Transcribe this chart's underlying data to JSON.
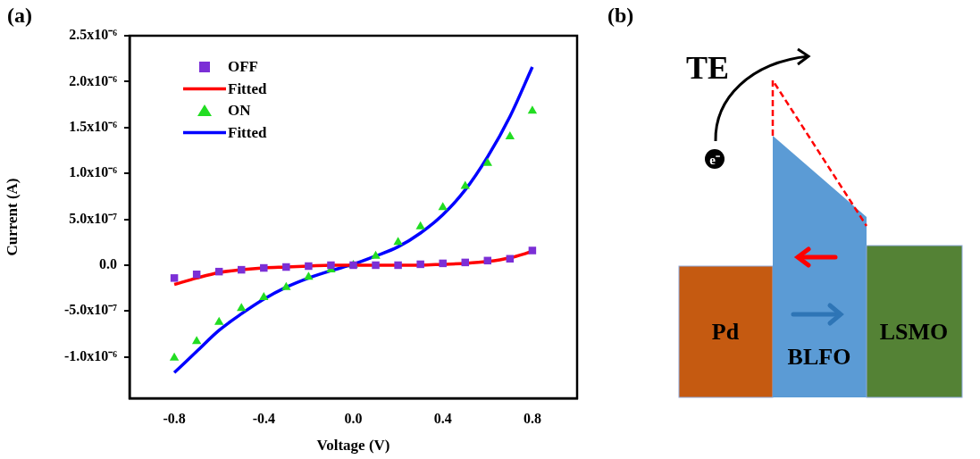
{
  "chart_data": [
    {
      "type": "scatter",
      "title": "(a)",
      "xlabel": "Voltage (V)",
      "ylabel": "Current (A)",
      "x": [
        -0.8,
        -0.7,
        -0.6,
        -0.5,
        -0.4,
        -0.3,
        -0.2,
        -0.1,
        0,
        0.1,
        0.2,
        0.3,
        0.4,
        0.5,
        0.6,
        0.7,
        0.8
      ],
      "series": [
        {
          "name": "OFF",
          "type": "scatter",
          "marker": "square",
          "color": "#7b2fd6",
          "values": [
            -1.4e-07,
            -1e-07,
            -7e-08,
            -5e-08,
            -3e-08,
            -2e-08,
            -1e-08,
            0,
            0,
            0,
            0,
            1e-08,
            2e-08,
            3e-08,
            5e-08,
            7e-08,
            1.6e-07
          ]
        },
        {
          "name": "Fitted",
          "type": "line",
          "marker": "none",
          "color": "#ff0000",
          "values": [
            -2.1e-07,
            -1.4e-07,
            -8e-08,
            -5e-08,
            -3e-08,
            -2e-08,
            -1e-08,
            0,
            0,
            0,
            0,
            0,
            1e-08,
            2e-08,
            4e-08,
            8e-08,
            1.5e-07
          ]
        },
        {
          "name": "ON",
          "type": "scatter",
          "marker": "triangle",
          "color": "#22dd22",
          "values": [
            -1.01e-06,
            -8.3e-07,
            -6.2e-07,
            -4.7e-07,
            -3.5e-07,
            -2.4e-07,
            -1.3e-07,
            -5e-08,
            0,
            1e-07,
            2.5e-07,
            4.2e-07,
            6.3e-07,
            8.6e-07,
            1.11e-06,
            1.4e-06,
            1.68e-06
          ]
        },
        {
          "name": "Fitted",
          "type": "line",
          "marker": "none",
          "color": "#0000ff",
          "values": [
            -1.17e-06,
            -9.4e-07,
            -7.1e-07,
            -5.3e-07,
            -3.7e-07,
            -2.4e-07,
            -1.4e-07,
            -6e-08,
            1e-08,
            1e-07,
            2e-07,
            3.5e-07,
            5.5e-07,
            8.2e-07,
            1.18e-06,
            1.62e-06,
            2.16e-06
          ]
        }
      ],
      "xlim": [
        -1.0,
        1.0
      ],
      "xticks": [
        {
          "value": -0.8,
          "label": "-0.8"
        },
        {
          "value": -0.4,
          "label": "-0.4"
        },
        {
          "value": 0,
          "label": "0.0"
        },
        {
          "value": 0.4,
          "label": "0.4"
        },
        {
          "value": 0.8,
          "label": "0.8"
        }
      ],
      "ylim": [
        -1.45e-06,
        2.5e-06
      ],
      "yticks": [
        {
          "value": -1e-06,
          "label": "-1.0x10⁻⁶"
        },
        {
          "value": -5e-07,
          "label": "-5.0x10⁻⁷"
        },
        {
          "value": 0,
          "label": "0.0"
        },
        {
          "value": 5e-07,
          "label": "5.0x10⁻⁷"
        },
        {
          "value": 1e-06,
          "label": "1.0x10⁻⁶"
        },
        {
          "value": 1.5e-06,
          "label": "1.5x10⁻⁶"
        },
        {
          "value": 2e-06,
          "label": "2.0x10⁻⁶"
        },
        {
          "value": 2.5e-06,
          "label": "2.5x10⁻⁶"
        }
      ],
      "grid": false,
      "legend": "top left"
    },
    {
      "type": "other",
      "title": "(b)",
      "annotations": [
        "TE",
        "e⁻",
        "Pd",
        "BLFO",
        "LSMO"
      ]
    }
  ]
}
